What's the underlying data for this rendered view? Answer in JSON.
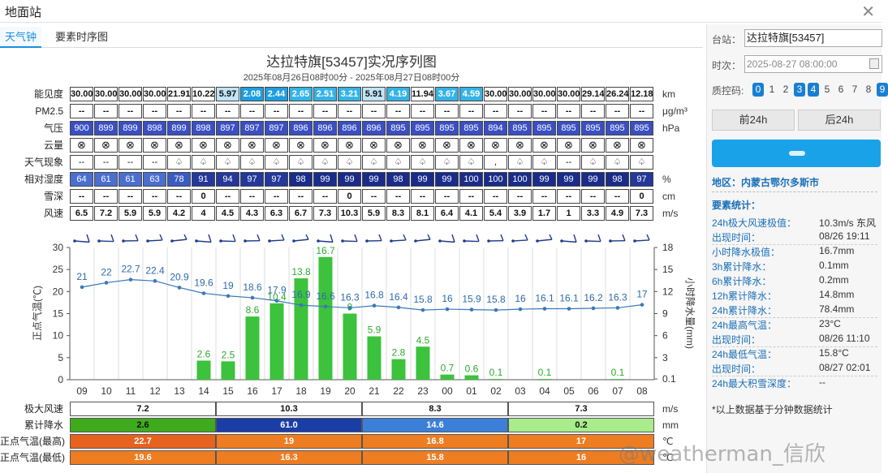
{
  "window": {
    "title": "地面站"
  },
  "tabs": [
    {
      "label": "天气钟"
    },
    {
      "label": "要素时序图"
    }
  ],
  "chart_title": "达拉特旗[53457]实况序列图",
  "chart_subtitle": "2025年08月26日08时00分 - 2025年08月27日08时00分",
  "table": {
    "rows": [
      {
        "label": "能见度",
        "unit": "km",
        "values": [
          "30.00",
          "30.00",
          "30.00",
          "30.00",
          "21.91",
          "10.22",
          "5.97",
          "2.08",
          "2.44",
          "2.65",
          "2.51",
          "3.21",
          "5.91",
          "4.19",
          "11.94",
          "3.67",
          "4.59",
          "30.00",
          "30.00",
          "30.00",
          "30.00",
          "29.14",
          "26.24",
          "12.18"
        ]
      },
      {
        "label": "PM2.5",
        "unit": "μg/m³",
        "values": [
          "--",
          "--",
          "--",
          "--",
          "--",
          "--",
          "--",
          "--",
          "--",
          "--",
          "--",
          "--",
          "--",
          "--",
          "--",
          "--",
          "--",
          "--",
          "--",
          "--",
          "--",
          "--",
          "--",
          "--"
        ]
      },
      {
        "label": "气压",
        "unit": "hPa",
        "values": [
          "900",
          "899",
          "899",
          "898",
          "899",
          "898",
          "897",
          "897",
          "897",
          "896",
          "896",
          "896",
          "896",
          "895",
          "895",
          "895",
          "895",
          "894",
          "895",
          "895",
          "895",
          "895",
          "895",
          "895"
        ]
      },
      {
        "label": "云量",
        "unit": "",
        "values": [
          "⊗",
          "⊗",
          "⊗",
          "⊗",
          "⊗",
          "⊗",
          "⊗",
          "⊗",
          "⊗",
          "⊗",
          "⊗",
          "⊗",
          "⊗",
          "⊗",
          "⊗",
          "⊗",
          "⊗",
          "⊗",
          "⊗",
          "⊗",
          "⊗",
          "⊗",
          "⊗",
          "⊗"
        ]
      },
      {
        "label": "天气现象",
        "unit": "",
        "values": [
          "--",
          "--",
          "--",
          "--",
          "♤",
          "♤",
          "♤",
          "♤",
          "♤",
          "♤",
          "♤",
          "♤",
          "♤",
          "♤",
          "♤",
          "♤",
          "♤",
          ",",
          "♤",
          "♤",
          "--",
          "♤",
          "♤",
          "♤"
        ]
      },
      {
        "label": "相对湿度",
        "unit": "%",
        "values": [
          "64",
          "61",
          "61",
          "63",
          "78",
          "91",
          "94",
          "97",
          "97",
          "98",
          "99",
          "99",
          "99",
          "98",
          "99",
          "99",
          "100",
          "100",
          "100",
          "99",
          "99",
          "99",
          "98",
          "97"
        ]
      },
      {
        "label": "雪深",
        "unit": "cm",
        "values": [
          "--",
          "--",
          "--",
          "--",
          "--",
          "0",
          "--",
          "--",
          "--",
          "--",
          "--",
          "0",
          "--",
          "--",
          "--",
          "--",
          "--",
          "--",
          "--",
          "--",
          "--",
          "--",
          "--",
          "0"
        ]
      },
      {
        "label": "风速",
        "unit": "m/s",
        "values": [
          "6.5",
          "7.2",
          "5.9",
          "5.9",
          "4.2",
          "4",
          "4.5",
          "4.3",
          "6.3",
          "6.7",
          "7.3",
          "10.3",
          "5.9",
          "8.3",
          "8.1",
          "6.4",
          "4.1",
          "5.4",
          "3.9",
          "1.7",
          "1",
          "3.3",
          "4.9",
          "7.3"
        ]
      }
    ]
  },
  "chart_data": {
    "type": "bar+line",
    "categories": [
      "09",
      "10",
      "11",
      "12",
      "13",
      "14",
      "15",
      "16",
      "17",
      "18",
      "19",
      "20",
      "21",
      "22",
      "23",
      "00",
      "01",
      "02",
      "03",
      "04",
      "05",
      "06",
      "07",
      "08"
    ],
    "series": [
      {
        "name": "正点气温(℃)",
        "type": "line",
        "axis": "left",
        "values": [
          21,
          22,
          22.7,
          22.4,
          20.9,
          19.6,
          19,
          18.6,
          17.9,
          16.9,
          16.6,
          16.3,
          16.8,
          16.4,
          15.8,
          16,
          15.9,
          15.8,
          16,
          16.1,
          16.1,
          16.2,
          16.3,
          17
        ]
      },
      {
        "name": "小时降水量(mm)",
        "type": "bar",
        "axis": "right",
        "values": [
          0,
          0,
          0,
          0,
          0,
          2.6,
          2.5,
          8.6,
          10.4,
          13.8,
          16.7,
          9,
          5.9,
          2.8,
          4.5,
          0.7,
          0.6,
          0.1,
          0,
          0.1,
          0,
          0,
          0.1,
          0
        ]
      }
    ],
    "ylabel": "正点气温(℃)",
    "y2label": "小时降水量(mm)",
    "ylim": [
      0,
      30
    ],
    "yticks": [
      0,
      5,
      10,
      15,
      20,
      25,
      30
    ],
    "y2lim": [
      0.1,
      18
    ],
    "y2ticks": [
      "0.1",
      "3",
      "6",
      "9",
      "12",
      "15",
      "18"
    ],
    "grid": true
  },
  "summary": {
    "rows": [
      {
        "label": "极大风速",
        "unit": "m/s",
        "values": [
          "7.2",
          "10.3",
          "8.3",
          "7.3"
        ],
        "colors": [
          "#ffffff",
          "#ffffff",
          "#ffffff",
          "#ffffff"
        ],
        "text_colors": [
          "#111",
          "#111",
          "#111",
          "#111"
        ]
      },
      {
        "label": "累计降水",
        "unit": "mm",
        "values": [
          "2.6",
          "61.0",
          "14.6",
          "0.2"
        ],
        "colors": [
          "#3faa1e",
          "#1b3ea6",
          "#3c7fd8",
          "#a8ec8c"
        ],
        "text_colors": [
          "#111",
          "#fff",
          "#fff",
          "#111"
        ]
      },
      {
        "label": "正点气温(最高)",
        "unit": "℃",
        "values": [
          "22.7",
          "19",
          "16.8",
          "17"
        ],
        "colors": [
          "#e8621f",
          "#ee7d22",
          "#ee7d22",
          "#ee7d22"
        ],
        "text_colors": [
          "#fff",
          "#fff",
          "#fff",
          "#fff"
        ]
      },
      {
        "label": "正点气温(最低)",
        "unit": "℃",
        "values": [
          "19.6",
          "16.3",
          "15.8",
          "16"
        ],
        "colors": [
          "#ee7d22",
          "#ee7d22",
          "#ee7d22",
          "#ee7d22"
        ],
        "text_colors": [
          "#fff",
          "#fff",
          "#fff",
          "#fff"
        ]
      }
    ]
  },
  "side": {
    "station_label": "台站：",
    "station_value": "达拉特旗[53457]",
    "time_label": "时次：",
    "time_value": "2025-08-27 08:00:00",
    "qc_label": "质控码:",
    "qc_codes": [
      "0",
      "1",
      "2",
      "3",
      "4",
      "5",
      "6",
      "7",
      "8",
      "9"
    ],
    "qc_on": [
      "0",
      "3",
      "4",
      "9"
    ],
    "prev_label": "前24h",
    "next_label": "后24h",
    "region": "地区：内蒙古鄂尔多斯市",
    "stats_title": "要素统计：",
    "stats": [
      {
        "k": "24h极大风速极值：",
        "v": "10.3m/s 东风"
      },
      {
        "k": "出现时间：",
        "v": "08/26 19:11"
      },
      {
        "k": "小时降水极值：",
        "v": "16.7mm"
      },
      {
        "k": "3h累计降水：",
        "v": "0.1mm"
      },
      {
        "k": "6h累计降水：",
        "v": "0.2mm"
      },
      {
        "k": "12h累计降水：",
        "v": "14.8mm"
      },
      {
        "k": "24h累计降水：",
        "v": "78.4mm"
      },
      {
        "k": "24h最高气温：",
        "v": "23°C"
      },
      {
        "k": "出现时间：",
        "v": "08/26 11:10"
      },
      {
        "k": "24h最低气温：",
        "v": "15.8°C"
      },
      {
        "k": "出现时间：",
        "v": "08/27 02:01"
      },
      {
        "k": "24h最大积雪深度：",
        "v": "--"
      }
    ],
    "note": "*以上数据基于分钟数据统计"
  },
  "watermark": "@weatherman_信欣",
  "colors": {
    "accent": "#1a8fdf",
    "temp_line": "#3a78b8",
    "rain_bar": "#3cc23c",
    "rain_label": "#2ea82e"
  }
}
